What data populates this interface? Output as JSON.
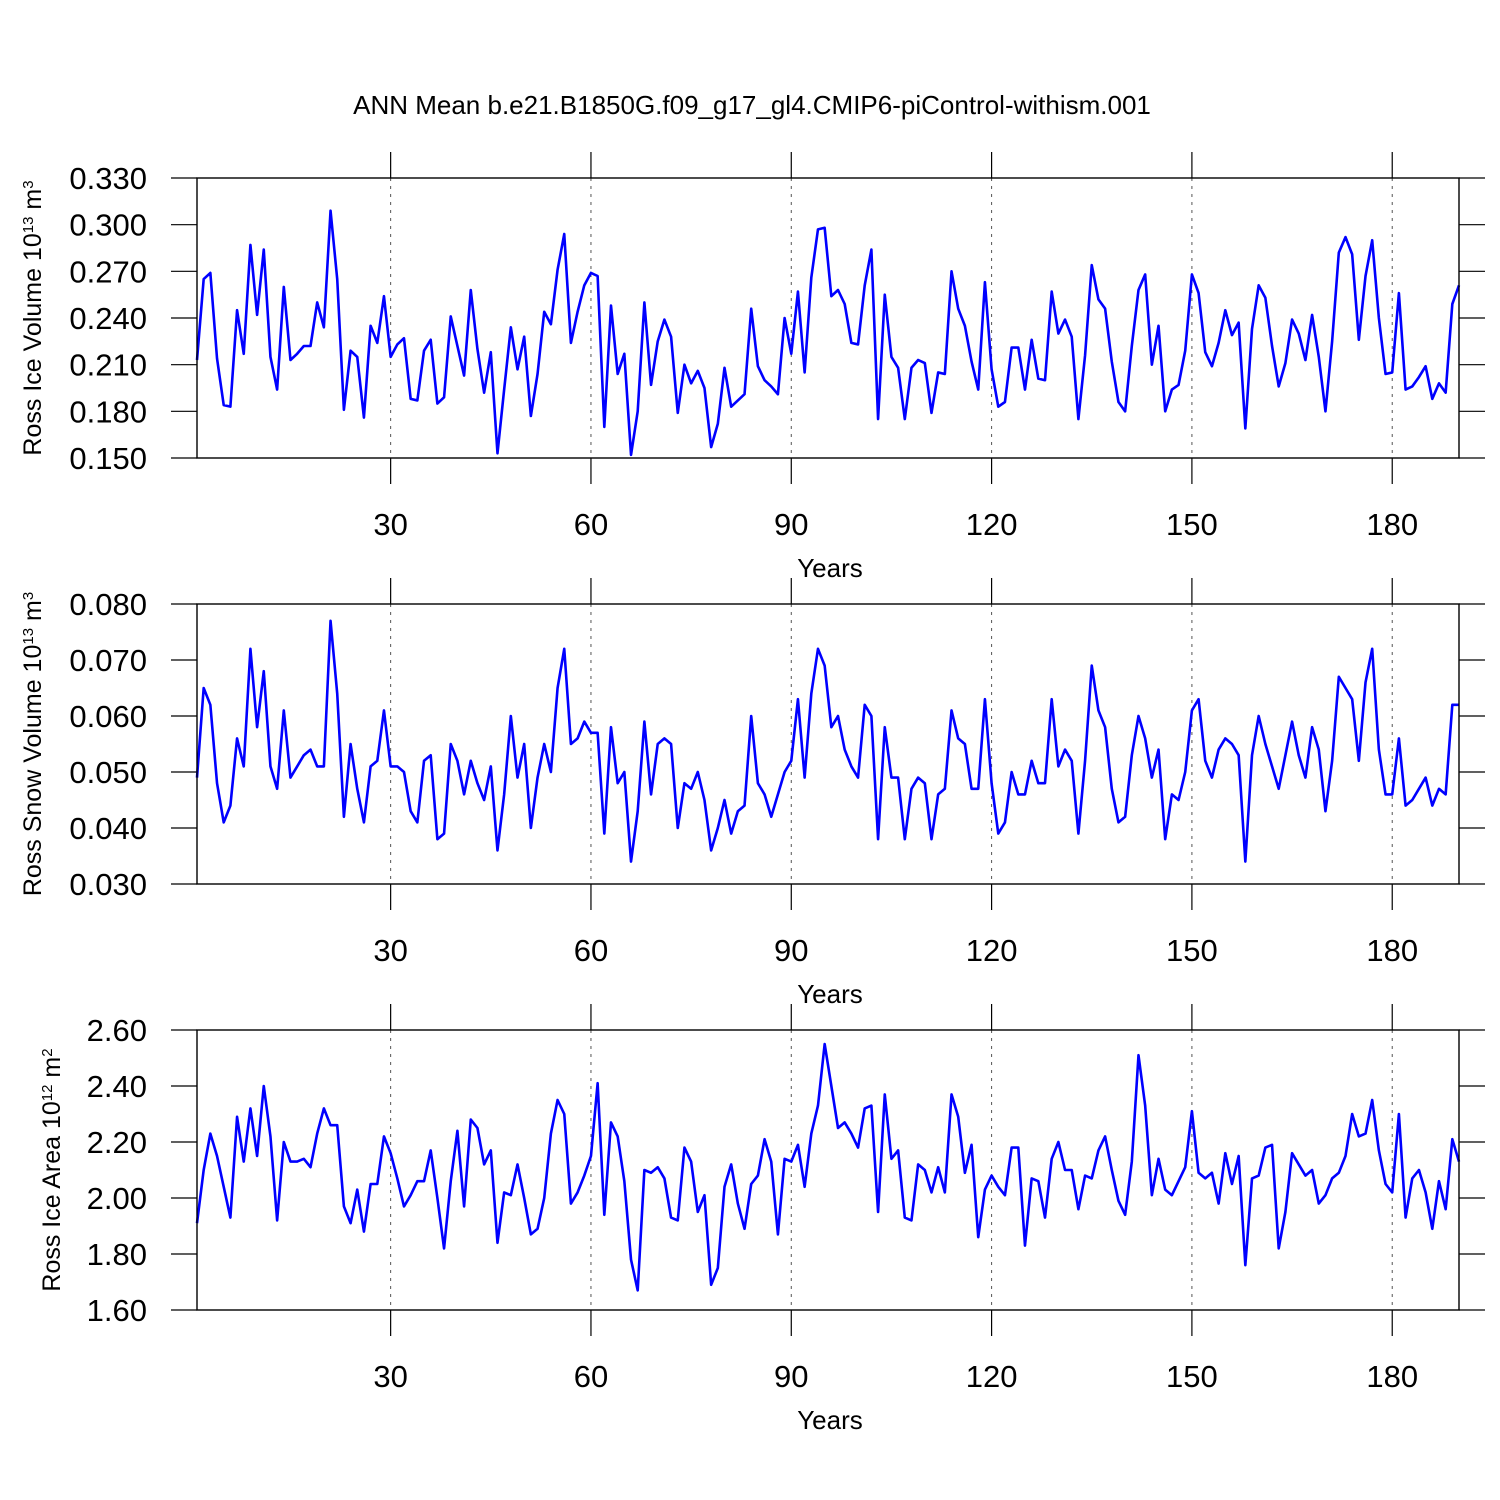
{
  "title": "ANN Mean b.e21.B1850G.f09_g17_gl4.CMIP6-piControl-withism.001",
  "chart_data": [
    {
      "type": "line",
      "color": "#0000ff",
      "xlabel": "Years",
      "ylabel": [
        "Ross Ice Volume 10",
        "13",
        " m",
        "3"
      ],
      "xlim": [
        1,
        190
      ],
      "xticks": [
        30,
        60,
        90,
        120,
        150,
        180
      ],
      "grid": "x",
      "ylim": [
        0.15,
        0.33
      ],
      "yticks": [
        {
          "value": 0.15,
          "label": "0.150"
        },
        {
          "value": 0.18,
          "label": "0.180"
        },
        {
          "value": 0.21,
          "label": "0.210"
        },
        {
          "value": 0.24,
          "label": "0.240"
        },
        {
          "value": 0.27,
          "label": "0.270"
        },
        {
          "value": 0.3,
          "label": "0.300"
        },
        {
          "value": 0.33,
          "label": "0.330"
        }
      ],
      "x": [
        1,
        2,
        3,
        4,
        5,
        6,
        7,
        8,
        9,
        10,
        11,
        12,
        13,
        14,
        15,
        16,
        17,
        18,
        19,
        20,
        21,
        22,
        23,
        24,
        25,
        26,
        27,
        28,
        29,
        30,
        31,
        32,
        33,
        34,
        35,
        36,
        37,
        38,
        39,
        40,
        41,
        42,
        43,
        44,
        45,
        46,
        47,
        48,
        49,
        50,
        51,
        52,
        53,
        54,
        55,
        56,
        57,
        58,
        59,
        60,
        61,
        62,
        63,
        64,
        65,
        66,
        67,
        68,
        69,
        70,
        71,
        72,
        73,
        74,
        75,
        76,
        77,
        78,
        79,
        80,
        81,
        82,
        83,
        84,
        85,
        86,
        87,
        88,
        89,
        90,
        91,
        92,
        93,
        94,
        95,
        96,
        97,
        98,
        99,
        100,
        101,
        102,
        103,
        104,
        105,
        106,
        107,
        108,
        109,
        110,
        111,
        112,
        113,
        114,
        115,
        116,
        117,
        118,
        119,
        120,
        121,
        122,
        123,
        124,
        125,
        126,
        127,
        128,
        129,
        130,
        131,
        132,
        133,
        134,
        135,
        136,
        137,
        138,
        139,
        140,
        141,
        142,
        143,
        144,
        145,
        146,
        147,
        148,
        149,
        150,
        151,
        152,
        153,
        154,
        155,
        156,
        157,
        158,
        159,
        160,
        161,
        162,
        163,
        164,
        165,
        166,
        167,
        168,
        169,
        170,
        171,
        172,
        173,
        174,
        175,
        176,
        177,
        178,
        179,
        180,
        181,
        182,
        183,
        184,
        185,
        186,
        187,
        188,
        189,
        190
      ],
      "values": [
        0.213,
        0.265,
        0.269,
        0.214,
        0.184,
        0.183,
        0.245,
        0.217,
        0.287,
        0.242,
        0.284,
        0.215,
        0.194,
        0.26,
        0.213,
        0.217,
        0.222,
        0.222,
        0.25,
        0.234,
        0.309,
        0.265,
        0.181,
        0.219,
        0.215,
        0.176,
        0.235,
        0.224,
        0.254,
        0.215,
        0.223,
        0.227,
        0.188,
        0.187,
        0.219,
        0.226,
        0.185,
        0.189,
        0.241,
        0.222,
        0.203,
        0.258,
        0.22,
        0.192,
        0.218,
        0.153,
        0.194,
        0.234,
        0.207,
        0.228,
        0.177,
        0.204,
        0.244,
        0.236,
        0.271,
        0.294,
        0.224,
        0.244,
        0.261,
        0.269,
        0.267,
        0.17,
        0.248,
        0.204,
        0.217,
        0.152,
        0.18,
        0.25,
        0.197,
        0.225,
        0.239,
        0.228,
        0.179,
        0.21,
        0.198,
        0.206,
        0.195,
        0.157,
        0.172,
        0.208,
        0.183,
        0.187,
        0.191,
        0.246,
        0.209,
        0.2,
        0.196,
        0.191,
        0.24,
        0.217,
        0.257,
        0.205,
        0.266,
        0.297,
        0.298,
        0.254,
        0.258,
        0.249,
        0.224,
        0.223,
        0.261,
        0.284,
        0.175,
        0.255,
        0.215,
        0.208,
        0.175,
        0.208,
        0.213,
        0.211,
        0.179,
        0.205,
        0.204,
        0.27,
        0.246,
        0.235,
        0.212,
        0.194,
        0.263,
        0.207,
        0.183,
        0.186,
        0.221,
        0.221,
        0.194,
        0.226,
        0.201,
        0.2,
        0.257,
        0.23,
        0.239,
        0.228,
        0.175,
        0.216,
        0.274,
        0.252,
        0.246,
        0.212,
        0.186,
        0.18,
        0.222,
        0.258,
        0.268,
        0.21,
        0.235,
        0.18,
        0.194,
        0.197,
        0.219,
        0.268,
        0.256,
        0.218,
        0.209,
        0.224,
        0.245,
        0.229,
        0.237,
        0.169,
        0.233,
        0.261,
        0.253,
        0.222,
        0.196,
        0.211,
        0.239,
        0.23,
        0.213,
        0.242,
        0.215,
        0.18,
        0.225,
        0.282,
        0.292,
        0.281,
        0.226,
        0.267,
        0.29,
        0.24,
        0.204,
        0.205,
        0.256,
        0.194,
        0.196,
        0.202,
        0.209,
        0.188,
        0.198,
        0.192,
        0.249,
        0.261
      ]
    },
    {
      "type": "line",
      "color": "#0000ff",
      "xlabel": "Years",
      "ylabel": [
        "Ross Snow Volume 10",
        "13",
        " m",
        "3"
      ],
      "xlim": [
        1,
        190
      ],
      "xticks": [
        30,
        60,
        90,
        120,
        150,
        180
      ],
      "grid": "x",
      "ylim": [
        0.03,
        0.08
      ],
      "yticks": [
        {
          "value": 0.03,
          "label": "0.030"
        },
        {
          "value": 0.04,
          "label": "0.040"
        },
        {
          "value": 0.05,
          "label": "0.050"
        },
        {
          "value": 0.06,
          "label": "0.060"
        },
        {
          "value": 0.07,
          "label": "0.070"
        },
        {
          "value": 0.08,
          "label": "0.080"
        }
      ],
      "x": [
        1,
        2,
        3,
        4,
        5,
        6,
        7,
        8,
        9,
        10,
        11,
        12,
        13,
        14,
        15,
        16,
        17,
        18,
        19,
        20,
        21,
        22,
        23,
        24,
        25,
        26,
        27,
        28,
        29,
        30,
        31,
        32,
        33,
        34,
        35,
        36,
        37,
        38,
        39,
        40,
        41,
        42,
        43,
        44,
        45,
        46,
        47,
        48,
        49,
        50,
        51,
        52,
        53,
        54,
        55,
        56,
        57,
        58,
        59,
        60,
        61,
        62,
        63,
        64,
        65,
        66,
        67,
        68,
        69,
        70,
        71,
        72,
        73,
        74,
        75,
        76,
        77,
        78,
        79,
        80,
        81,
        82,
        83,
        84,
        85,
        86,
        87,
        88,
        89,
        90,
        91,
        92,
        93,
        94,
        95,
        96,
        97,
        98,
        99,
        100,
        101,
        102,
        103,
        104,
        105,
        106,
        107,
        108,
        109,
        110,
        111,
        112,
        113,
        114,
        115,
        116,
        117,
        118,
        119,
        120,
        121,
        122,
        123,
        124,
        125,
        126,
        127,
        128,
        129,
        130,
        131,
        132,
        133,
        134,
        135,
        136,
        137,
        138,
        139,
        140,
        141,
        142,
        143,
        144,
        145,
        146,
        147,
        148,
        149,
        150,
        151,
        152,
        153,
        154,
        155,
        156,
        157,
        158,
        159,
        160,
        161,
        162,
        163,
        164,
        165,
        166,
        167,
        168,
        169,
        170,
        171,
        172,
        173,
        174,
        175,
        176,
        177,
        178,
        179,
        180,
        181,
        182,
        183,
        184,
        185,
        186,
        187,
        188,
        189,
        190
      ],
      "values": [
        0.049,
        0.065,
        0.062,
        0.048,
        0.041,
        0.044,
        0.056,
        0.051,
        0.072,
        0.058,
        0.068,
        0.051,
        0.047,
        0.061,
        0.049,
        0.051,
        0.053,
        0.054,
        0.051,
        0.051,
        0.077,
        0.064,
        0.042,
        0.055,
        0.047,
        0.041,
        0.051,
        0.052,
        0.061,
        0.051,
        0.051,
        0.05,
        0.043,
        0.041,
        0.052,
        0.053,
        0.038,
        0.039,
        0.055,
        0.052,
        0.046,
        0.052,
        0.048,
        0.045,
        0.051,
        0.036,
        0.046,
        0.06,
        0.049,
        0.055,
        0.04,
        0.049,
        0.055,
        0.05,
        0.065,
        0.072,
        0.055,
        0.056,
        0.059,
        0.057,
        0.057,
        0.039,
        0.058,
        0.048,
        0.05,
        0.034,
        0.043,
        0.059,
        0.046,
        0.055,
        0.056,
        0.055,
        0.04,
        0.048,
        0.047,
        0.05,
        0.045,
        0.036,
        0.04,
        0.045,
        0.039,
        0.043,
        0.044,
        0.06,
        0.048,
        0.046,
        0.042,
        0.046,
        0.05,
        0.052,
        0.063,
        0.049,
        0.064,
        0.072,
        0.069,
        0.058,
        0.06,
        0.054,
        0.051,
        0.049,
        0.062,
        0.06,
        0.038,
        0.058,
        0.049,
        0.049,
        0.038,
        0.047,
        0.049,
        0.048,
        0.038,
        0.046,
        0.047,
        0.061,
        0.056,
        0.055,
        0.047,
        0.047,
        0.063,
        0.048,
        0.039,
        0.041,
        0.05,
        0.046,
        0.046,
        0.052,
        0.048,
        0.048,
        0.063,
        0.051,
        0.054,
        0.052,
        0.039,
        0.052,
        0.069,
        0.061,
        0.058,
        0.047,
        0.041,
        0.042,
        0.053,
        0.06,
        0.056,
        0.049,
        0.054,
        0.038,
        0.046,
        0.045,
        0.05,
        0.061,
        0.063,
        0.052,
        0.049,
        0.054,
        0.056,
        0.055,
        0.053,
        0.034,
        0.053,
        0.06,
        0.055,
        0.051,
        0.047,
        0.053,
        0.059,
        0.053,
        0.049,
        0.058,
        0.054,
        0.043,
        0.052,
        0.067,
        0.065,
        0.063,
        0.052,
        0.066,
        0.072,
        0.054,
        0.046,
        0.046,
        0.056,
        0.044,
        0.045,
        0.047,
        0.049,
        0.044,
        0.047,
        0.046,
        0.062,
        0.062
      ]
    },
    {
      "type": "line",
      "color": "#0000ff",
      "xlabel": "Years",
      "ylabel": [
        "Ross Ice Area 10",
        "12",
        " m",
        "2"
      ],
      "xlim": [
        1,
        190
      ],
      "xticks": [
        30,
        60,
        90,
        120,
        150,
        180
      ],
      "grid": "x",
      "ylim": [
        1.6,
        2.6
      ],
      "yticks": [
        {
          "value": 1.6,
          "label": "1.60"
        },
        {
          "value": 1.8,
          "label": "1.80"
        },
        {
          "value": 2.0,
          "label": "2.00"
        },
        {
          "value": 2.2,
          "label": "2.20"
        },
        {
          "value": 2.4,
          "label": "2.40"
        },
        {
          "value": 2.6,
          "label": "2.60"
        }
      ],
      "x": [
        1,
        2,
        3,
        4,
        5,
        6,
        7,
        8,
        9,
        10,
        11,
        12,
        13,
        14,
        15,
        16,
        17,
        18,
        19,
        20,
        21,
        22,
        23,
        24,
        25,
        26,
        27,
        28,
        29,
        30,
        31,
        32,
        33,
        34,
        35,
        36,
        37,
        38,
        39,
        40,
        41,
        42,
        43,
        44,
        45,
        46,
        47,
        48,
        49,
        50,
        51,
        52,
        53,
        54,
        55,
        56,
        57,
        58,
        59,
        60,
        61,
        62,
        63,
        64,
        65,
        66,
        67,
        68,
        69,
        70,
        71,
        72,
        73,
        74,
        75,
        76,
        77,
        78,
        79,
        80,
        81,
        82,
        83,
        84,
        85,
        86,
        87,
        88,
        89,
        90,
        91,
        92,
        93,
        94,
        95,
        96,
        97,
        98,
        99,
        100,
        101,
        102,
        103,
        104,
        105,
        106,
        107,
        108,
        109,
        110,
        111,
        112,
        113,
        114,
        115,
        116,
        117,
        118,
        119,
        120,
        121,
        122,
        123,
        124,
        125,
        126,
        127,
        128,
        129,
        130,
        131,
        132,
        133,
        134,
        135,
        136,
        137,
        138,
        139,
        140,
        141,
        142,
        143,
        144,
        145,
        146,
        147,
        148,
        149,
        150,
        151,
        152,
        153,
        154,
        155,
        156,
        157,
        158,
        159,
        160,
        161,
        162,
        163,
        164,
        165,
        166,
        167,
        168,
        169,
        170,
        171,
        172,
        173,
        174,
        175,
        176,
        177,
        178,
        179,
        180,
        181,
        182,
        183,
        184,
        185,
        186,
        187,
        188,
        189,
        190
      ],
      "values": [
        1.91,
        2.1,
        2.23,
        2.15,
        2.04,
        1.93,
        2.29,
        2.13,
        2.32,
        2.15,
        2.4,
        2.22,
        1.92,
        2.2,
        2.13,
        2.13,
        2.14,
        2.11,
        2.23,
        2.32,
        2.26,
        2.26,
        1.97,
        1.91,
        2.03,
        1.88,
        2.05,
        2.05,
        2.22,
        2.16,
        2.07,
        1.97,
        2.01,
        2.06,
        2.06,
        2.17,
        2.0,
        1.82,
        2.06,
        2.24,
        1.97,
        2.28,
        2.25,
        2.12,
        2.17,
        1.84,
        2.02,
        2.01,
        2.12,
        2.0,
        1.87,
        1.89,
        2.0,
        2.23,
        2.35,
        2.3,
        1.98,
        2.02,
        2.08,
        2.15,
        2.41,
        1.94,
        2.27,
        2.22,
        2.06,
        1.78,
        1.67,
        2.1,
        2.09,
        2.11,
        2.07,
        1.93,
        1.92,
        2.18,
        2.13,
        1.95,
        2.01,
        1.69,
        1.75,
        2.04,
        2.12,
        1.98,
        1.89,
        2.05,
        2.08,
        2.21,
        2.13,
        1.87,
        2.14,
        2.13,
        2.19,
        2.04,
        2.23,
        2.33,
        2.55,
        2.4,
        2.25,
        2.27,
        2.23,
        2.18,
        2.32,
        2.33,
        1.95,
        2.37,
        2.14,
        2.17,
        1.93,
        1.92,
        2.12,
        2.1,
        2.02,
        2.11,
        2.02,
        2.37,
        2.29,
        2.09,
        2.19,
        1.86,
        2.03,
        2.08,
        2.04,
        2.01,
        2.18,
        2.18,
        1.83,
        2.07,
        2.06,
        1.93,
        2.14,
        2.2,
        2.1,
        2.1,
        1.96,
        2.08,
        2.07,
        2.17,
        2.22,
        2.1,
        1.99,
        1.94,
        2.13,
        2.51,
        2.33,
        2.01,
        2.14,
        2.03,
        2.01,
        2.06,
        2.11,
        2.31,
        2.09,
        2.07,
        2.09,
        1.98,
        2.16,
        2.05,
        2.15,
        1.76,
        2.07,
        2.08,
        2.18,
        2.19,
        1.82,
        1.95,
        2.16,
        2.12,
        2.08,
        2.1,
        1.98,
        2.01,
        2.07,
        2.09,
        2.15,
        2.3,
        2.22,
        2.23,
        2.35,
        2.17,
        2.05,
        2.02,
        2.3,
        1.93,
        2.07,
        2.1,
        2.02,
        1.89,
        2.06,
        1.96,
        2.21,
        2.13
      ]
    }
  ]
}
